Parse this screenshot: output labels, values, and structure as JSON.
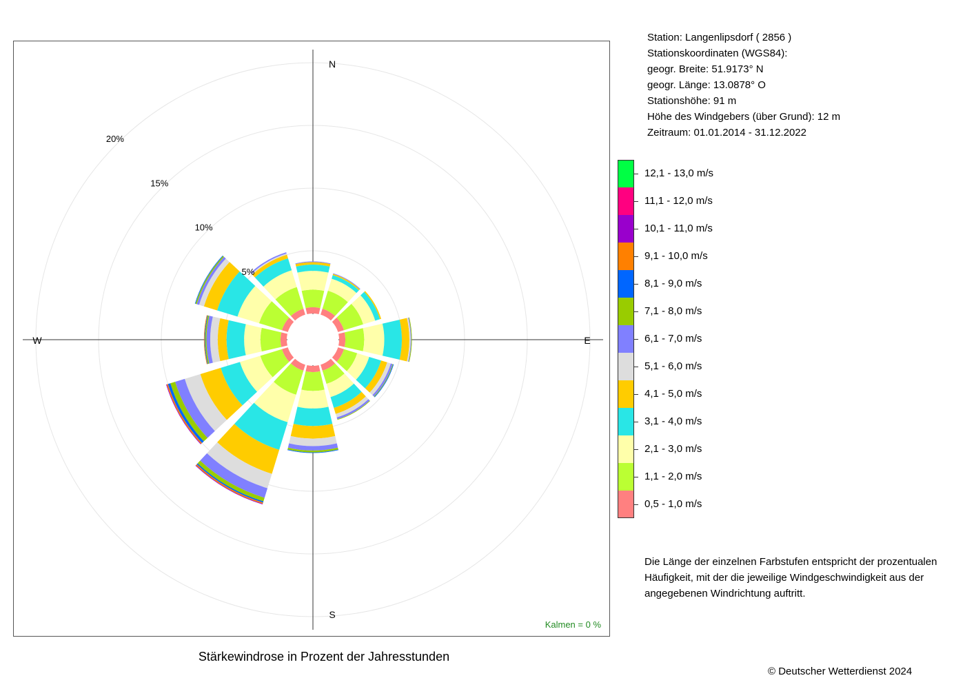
{
  "station": {
    "lines": [
      "Station:  Langenlipsdorf  ( 2856 )",
      "Stationskoordinaten (WGS84):",
      "geogr. Breite: 51.9173° N",
      "geogr. Länge: 13.0878° O",
      "Stationshöhe: 91 m",
      "Höhe des Windgebers (über Grund): 12 m",
      "Zeitraum: 01.01.2014 - 31.12.2022"
    ]
  },
  "note": "Die Länge der einzelnen Farbstufen entspricht der prozentualen Häufigkeit, mit der die jeweilige Windgeschwindigkeit aus der angegebenen Windrichtung auftritt.",
  "copyright": "© Deutscher Wetterdienst  2024",
  "chart_data": {
    "type": "wind-rose",
    "title": "Stärkewindrose in Prozent der Jahresstunden",
    "calm_label": "Kalmen  =  0 %",
    "compass_labels": [
      "N",
      "E",
      "S",
      "W"
    ],
    "ring_labels": [
      {
        "value": 5,
        "text": "5%"
      },
      {
        "value": 10,
        "text": "10%"
      },
      {
        "value": 15,
        "text": "15%"
      },
      {
        "value": 20,
        "text": "20%"
      }
    ],
    "rmax": 20,
    "grid": true,
    "speed_classes": [
      {
        "label": "0,5 - 1,0 m/s",
        "color": "#FF8080"
      },
      {
        "label": "1,1 - 2,0 m/s",
        "color": "#BBFF33"
      },
      {
        "label": "2,1 - 3,0 m/s",
        "color": "#FFFFAA"
      },
      {
        "label": "3,1 - 4,0 m/s",
        "color": "#29E6E6"
      },
      {
        "label": "4,1 - 5,0 m/s",
        "color": "#FFCC00"
      },
      {
        "label": "5,1 - 6,0 m/s",
        "color": "#DDDDDD"
      },
      {
        "label": "6,1 - 7,0 m/s",
        "color": "#8080FF"
      },
      {
        "label": "7,1 - 8,0 m/s",
        "color": "#99CC00"
      },
      {
        "label": "8,1 - 9,0 m/s",
        "color": "#0066FF"
      },
      {
        "label": "9,1 - 10,0 m/s",
        "color": "#FF8000"
      },
      {
        "label": "10,1 - 11,0 m/s",
        "color": "#9900CC"
      },
      {
        "label": "11,1 - 12,0 m/s",
        "color": "#FF0080"
      },
      {
        "label": "12,1 - 13,0 m/s",
        "color": "#00FF44"
      }
    ],
    "directions_deg": [
      0,
      30,
      60,
      90,
      120,
      150,
      180,
      210,
      240,
      270,
      300,
      330
    ],
    "series": [
      {
        "name": "0,5 - 1,0 m/s",
        "values": [
          0.5,
          0.5,
          0.5,
          0.5,
          0.5,
          0.5,
          0.5,
          0.5,
          0.5,
          0.5,
          0.5,
          0.5
        ]
      },
      {
        "name": "1,1 - 2,0 m/s",
        "values": [
          1.4,
          1.5,
          1.6,
          1.5,
          1.1,
          1.1,
          1.5,
          2.0,
          1.8,
          1.6,
          1.9,
          1.8
        ]
      },
      {
        "name": "2,1 - 3,0 m/s",
        "values": [
          1.5,
          1.0,
          1.0,
          1.6,
          1.0,
          1.1,
          1.4,
          2.3,
          1.7,
          1.3,
          1.8,
          1.4
        ]
      },
      {
        "name": "3,1 - 4,0 m/s",
        "values": [
          0.5,
          0.3,
          0.4,
          1.4,
          1.0,
          0.9,
          1.4,
          2.3,
          1.6,
          1.4,
          1.7,
          1.0
        ]
      },
      {
        "name": "4,1 - 5,0 m/s",
        "values": [
          0.2,
          0.1,
          0.1,
          0.6,
          0.5,
          0.5,
          1.0,
          2.0,
          1.7,
          0.7,
          1.1,
          0.3
        ]
      },
      {
        "name": "5,1 - 6,0 m/s",
        "values": [
          0.0,
          0.0,
          0.0,
          0.1,
          0.3,
          0.3,
          0.6,
          1.2,
          1.3,
          0.6,
          0.4,
          0.1
        ]
      },
      {
        "name": "6,1 - 7,0 m/s",
        "values": [
          0.05,
          0.05,
          0.0,
          0.05,
          0.15,
          0.15,
          0.35,
          0.8,
          0.8,
          0.3,
          0.2,
          0.1
        ]
      },
      {
        "name": "7,1 - 8,0 m/s",
        "values": [
          0.0,
          0.0,
          0.0,
          0.05,
          0.05,
          0.05,
          0.15,
          0.3,
          0.4,
          0.1,
          0.1,
          0.0
        ]
      },
      {
        "name": "8,1 - 9,0 m/s",
        "values": [
          0.0,
          0.0,
          0.0,
          0.0,
          0.05,
          0.0,
          0.05,
          0.1,
          0.2,
          0.05,
          0.05,
          0.0
        ]
      },
      {
        "name": "9,1 - 10,0 m/s",
        "values": [
          0.0,
          0.0,
          0.0,
          0.0,
          0.0,
          0.0,
          0.0,
          0.1,
          0.1,
          0.05,
          0.0,
          0.0
        ]
      },
      {
        "name": "10,1 - 11,0 m/s",
        "values": [
          0.0,
          0.0,
          0.0,
          0.0,
          0.0,
          0.0,
          0.0,
          0.05,
          0.05,
          0.0,
          0.0,
          0.0
        ]
      }
    ]
  }
}
